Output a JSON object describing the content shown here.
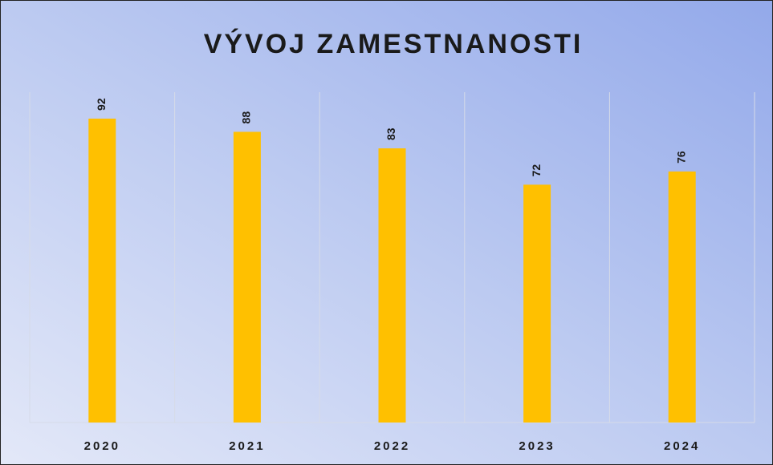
{
  "chart_data": {
    "type": "bar",
    "title": "VÝVOJ ZAMESTNANOSTI",
    "categories": [
      "2020",
      "2021",
      "2022",
      "2023",
      "2024"
    ],
    "values": [
      92,
      88,
      83,
      72,
      76
    ],
    "color": "#ffc000",
    "ylim": [
      0,
      100
    ]
  }
}
